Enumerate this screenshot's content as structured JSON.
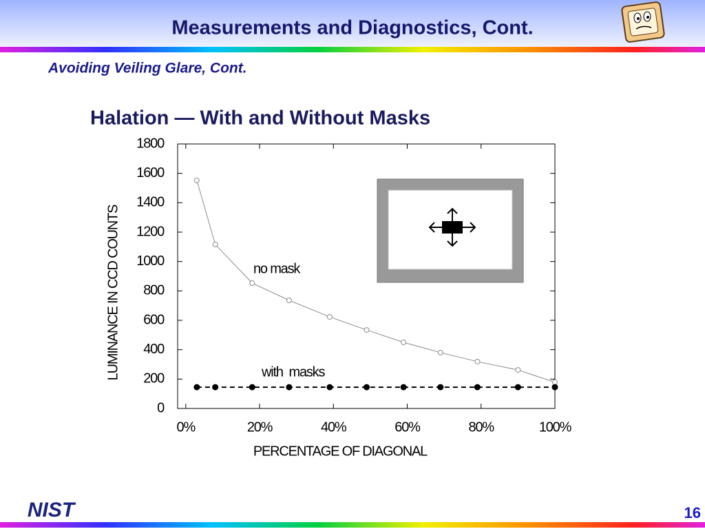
{
  "header": {
    "title": "Measurements and Diagnostics, Cont.",
    "subtitle": "Avoiding Veiling Glare, Cont."
  },
  "footer": {
    "logo": "NIST",
    "page": "16"
  },
  "chart_data": {
    "type": "line",
    "title": "Halation — With and Without Masks",
    "x_label": "PERCENTAGE OF DIAGONAL",
    "y_label": "LUMINANCE IN CCD COUNTS",
    "xlim": [
      -2.2,
      100
    ],
    "ylim": [
      0,
      1800
    ],
    "xticks": [
      {
        "value": 0,
        "label": "0%"
      },
      {
        "value": 20,
        "label": "20%"
      },
      {
        "value": 40,
        "label": "40%"
      },
      {
        "value": 60,
        "label": "60%"
      },
      {
        "value": 80,
        "label": "80%"
      },
      {
        "value": 100,
        "label": "100%"
      }
    ],
    "yticks": [
      0,
      200,
      400,
      600,
      800,
      1000,
      1200,
      1400,
      1600,
      1800
    ],
    "series": [
      {
        "name": "no mask",
        "color": "#8a8a8a",
        "dashed": false,
        "filled": false,
        "x": [
          3,
          8,
          18,
          28,
          39,
          49,
          59,
          69,
          79,
          90,
          100
        ],
        "values": [
          1552,
          1116,
          853,
          736,
          623,
          534,
          450,
          380,
          319,
          262,
          178
        ]
      },
      {
        "name": "with  masks",
        "color": "#000000",
        "dashed": true,
        "filled": true,
        "x": [
          3,
          8,
          18,
          28,
          39,
          49,
          59,
          69,
          79,
          90,
          100
        ],
        "values": [
          145,
          145,
          145,
          145,
          145,
          145,
          145,
          145,
          145,
          145,
          145
        ]
      }
    ]
  }
}
